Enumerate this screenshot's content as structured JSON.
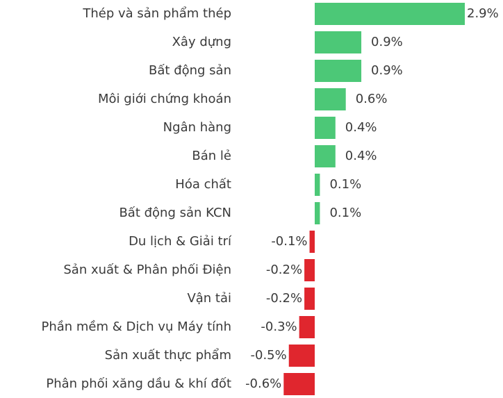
{
  "chart_data": {
    "type": "hbar",
    "categories": [
      "Thép và sản phẩm thép",
      "Xây dựng",
      "Bất động sản",
      "Môi giới chứng khoán",
      "Ngân hàng",
      "Bán lẻ",
      "Hóa chất",
      "Bất động sản KCN",
      "Du lịch & Giải trí",
      "Sản xuất & Phân phối Điện",
      "Vận tải",
      "Phần mềm & Dịch vụ Máy tính",
      "Sản xuất thực phẩm",
      "Phân phối xăng dầu & khí đốt"
    ],
    "values": [
      2.9,
      0.9,
      0.9,
      0.6,
      0.4,
      0.4,
      0.1,
      0.1,
      -0.1,
      -0.2,
      -0.2,
      -0.3,
      -0.5,
      -0.6
    ],
    "value_labels": [
      "2.9%",
      "0.9%",
      "0.9%",
      "0.6%",
      "0.4%",
      "0.4%",
      "0.1%",
      "0.1%",
      "-0.1%",
      "-0.2%",
      "-0.2%",
      "-0.3%",
      "-0.5%",
      "-0.6%"
    ],
    "positive_color": "#4cc877",
    "negative_color": "#e0262e"
  }
}
